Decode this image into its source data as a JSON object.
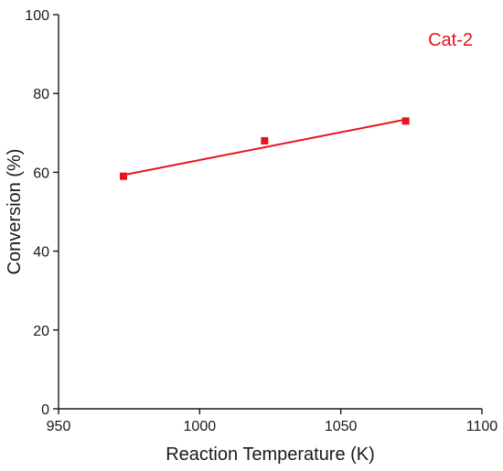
{
  "chart_data": {
    "type": "scatter",
    "xlabel": "Reaction Temperature (K)",
    "ylabel": "Conversion (%)",
    "xlim": [
      950,
      1100
    ],
    "ylim": [
      0,
      100
    ],
    "xticks": [
      950,
      1000,
      1050,
      1100
    ],
    "yticks": [
      0,
      20,
      40,
      60,
      80,
      100
    ],
    "grid": false,
    "series": [
      {
        "name": "Cat-2",
        "color": "#e8141c",
        "marker": "square",
        "x": [
          973,
          1023,
          1073
        ],
        "y": [
          59,
          68,
          73
        ]
      }
    ],
    "fit_lines": [
      {
        "series": "Cat-2",
        "x": [
          973,
          1073
        ],
        "y": [
          59.3,
          73.4
        ],
        "color": "#e8141c"
      }
    ],
    "legend_position": "top-right"
  }
}
